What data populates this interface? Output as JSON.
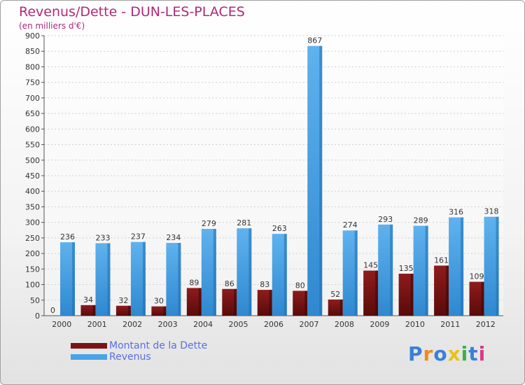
{
  "header": {
    "title": "Revenus/Dette - DUN-LES-PLACES",
    "subtitle": "(en milliers d'€)"
  },
  "chart_data": {
    "type": "bar",
    "title": "Revenus/Dette - DUN-LES-PLACES",
    "ylabel": "(en milliers d'€)",
    "xlabel": "",
    "ylim": [
      0,
      900
    ],
    "yticks": [
      0,
      50,
      100,
      150,
      200,
      250,
      300,
      350,
      400,
      450,
      500,
      550,
      600,
      650,
      700,
      750,
      800,
      850,
      900
    ],
    "categories": [
      "2000",
      "2001",
      "2002",
      "2003",
      "2004",
      "2005",
      "2006",
      "2007",
      "2008",
      "2009",
      "2010",
      "2011",
      "2012"
    ],
    "series": [
      {
        "name": "Montant de la Dette",
        "color": "#7a1414",
        "values": [
          0,
          34,
          32,
          30,
          89,
          86,
          83,
          80,
          52,
          145,
          135,
          161,
          109
        ]
      },
      {
        "name": "Revenus",
        "color": "#4aa3e6",
        "values": [
          236,
          233,
          237,
          234,
          279,
          281,
          263,
          867,
          274,
          293,
          289,
          316,
          318
        ]
      }
    ],
    "legend_position": "bottom-left"
  },
  "logo": {
    "letters": [
      "P",
      "r",
      "o",
      "x",
      "i",
      "t",
      "i"
    ],
    "colors": [
      "#3b7fd8",
      "#f08a1c",
      "#3b7fd8",
      "#e8c21a",
      "#3bb04a",
      "#3b7fd8",
      "#d93a8a"
    ]
  }
}
